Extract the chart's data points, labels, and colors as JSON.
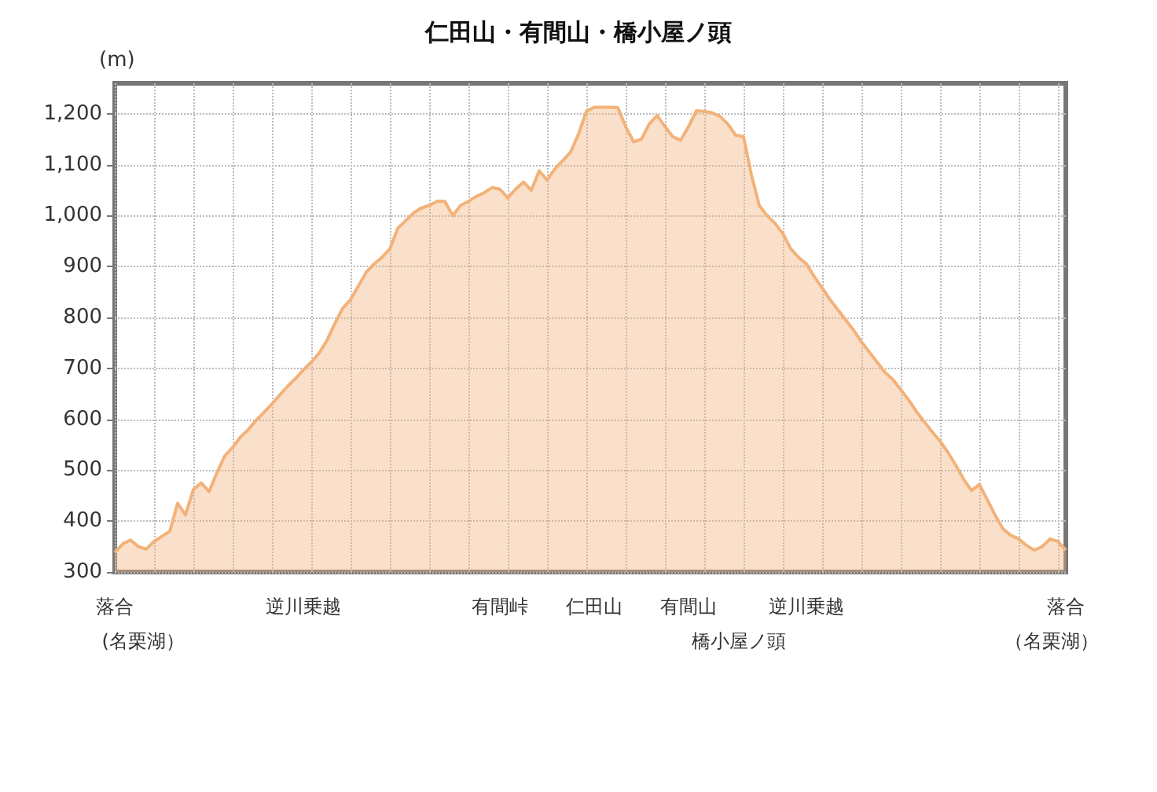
{
  "chart_data": {
    "type": "area",
    "title": "仁田山・有間山・橋小屋ノ頭",
    "ylabel": "(m)",
    "categories": [
      "落合",
      null,
      null,
      null,
      null,
      null,
      null,
      null,
      null,
      null,
      null,
      null,
      null,
      null,
      null,
      null,
      null,
      null,
      null,
      null,
      null,
      null,
      null,
      null,
      "逆川乗越",
      null,
      null,
      null,
      null,
      null,
      null,
      null,
      null,
      null,
      null,
      null,
      null,
      null,
      null,
      null,
      null,
      null,
      null,
      null,
      null,
      null,
      null,
      null,
      null,
      "有間峠",
      null,
      null,
      null,
      null,
      null,
      null,
      null,
      null,
      null,
      null,
      null,
      "仁田山",
      null,
      null,
      null,
      null,
      null,
      null,
      null,
      null,
      null,
      null,
      null,
      "有間山",
      null,
      null,
      null,
      null,
      null,
      null,
      null,
      null,
      null,
      null,
      null,
      null,
      null,
      null,
      "逆川乗越",
      null,
      null,
      null,
      null,
      null,
      null,
      null,
      null,
      null,
      null,
      null,
      null,
      null,
      null,
      null,
      null,
      null,
      null,
      null,
      null,
      null,
      null,
      null,
      null,
      null,
      null,
      null,
      null,
      null,
      null,
      null,
      null,
      "落合"
    ],
    "annotations": [
      "(名栗湖）",
      "橋小屋ノ頭",
      "（名栗湖）"
    ],
    "series": [
      {
        "color": "#f2b27a",
        "values": [
          338,
          355,
          363,
          350,
          345,
          360,
          370,
          380,
          435,
          412,
          462,
          475,
          458,
          495,
          528,
          545,
          565,
          580,
          598,
          614,
          630,
          648,
          665,
          680,
          697,
          712,
          730,
          755,
          788,
          818,
          835,
          862,
          889,
          905,
          918,
          935,
          975,
          990,
          1005,
          1015,
          1020,
          1028,
          1028,
          1000,
          1020,
          1028,
          1038,
          1045,
          1055,
          1052,
          1035,
          1052,
          1066,
          1050,
          1088,
          1070,
          1092,
          1108,
          1125,
          1160,
          1205,
          1213,
          1213,
          1213,
          1212,
          1175,
          1145,
          1150,
          1180,
          1197,
          1175,
          1155,
          1148,
          1175,
          1206,
          1205,
          1202,
          1195,
          1180,
          1158,
          1155,
          1080,
          1020,
          1000,
          985,
          965,
          935,
          918,
          905,
          880,
          858,
          835,
          815,
          795,
          775,
          752,
          732,
          712,
          692,
          678,
          658,
          638,
          615,
          595,
          575,
          557,
          535,
          510,
          482,
          460,
          472,
          442,
          412,
          385,
          372,
          365,
          352,
          343,
          350,
          365,
          360,
          343
        ]
      }
    ],
    "ylim": [
      300,
      1260
    ],
    "yticks": [
      300,
      400,
      500,
      600,
      700,
      800,
      900,
      {
        "value": 1000,
        "label": "1,000"
      },
      {
        "value": 1100,
        "label": "1,100"
      },
      {
        "value": 1200,
        "label": "1,200"
      }
    ],
    "grid": true,
    "marker": "none",
    "line_style": "solid"
  }
}
